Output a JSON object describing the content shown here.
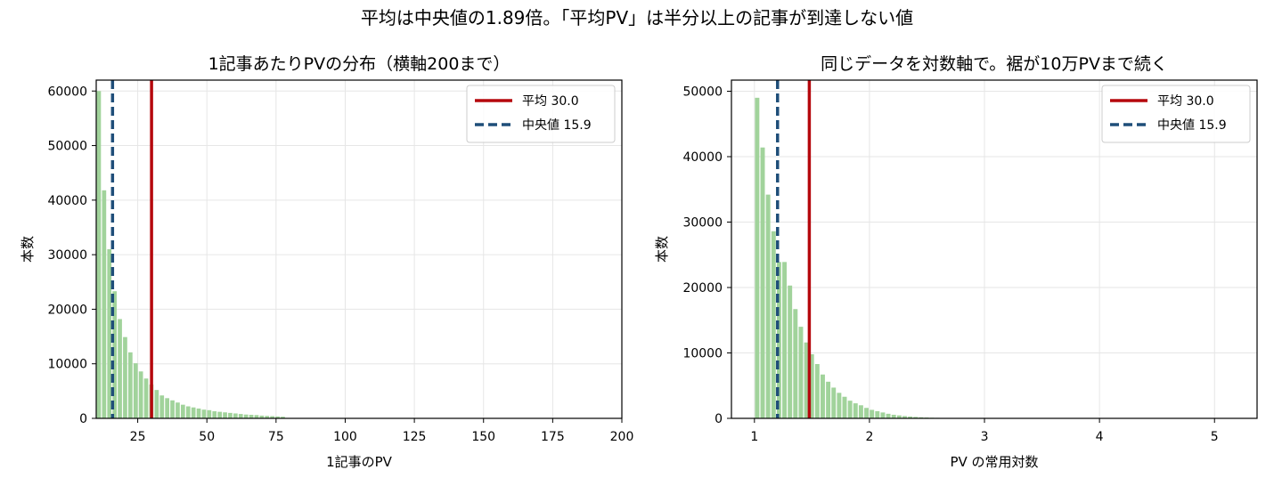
{
  "suptitle": "平均は中央値の1.89倍。「平均PV」は半分以上の記事が到達しない値",
  "colors": {
    "bars": "#a1d39b",
    "mean": "#b5080d",
    "median": "#1f4e79",
    "grid": "#e6e6e6"
  },
  "chart_data": [
    {
      "type": "bar",
      "title": "1記事あたりPVの分布（横軸200まで）",
      "xlabel": "1記事のPV",
      "ylabel": "本数",
      "xlim": [
        10,
        200
      ],
      "ylim": [
        0,
        62000
      ],
      "xticks": [
        25,
        50,
        75,
        100,
        125,
        150,
        175,
        200
      ],
      "yticks": [
        0,
        10000,
        20000,
        30000,
        40000,
        50000,
        60000
      ],
      "grid": true,
      "legend": {
        "position": "top-right",
        "entries": [
          {
            "label": "平均 30.0",
            "style": "solid"
          },
          {
            "label": "中央値 15.9",
            "style": "dashed"
          }
        ]
      },
      "mean": 30.0,
      "median": 15.9,
      "bin_width": 1.9,
      "x": [
        10.0,
        11.9,
        13.8,
        15.7,
        17.6,
        19.5,
        21.4,
        23.3,
        25.2,
        27.1,
        29.0,
        30.9,
        32.8,
        34.7,
        36.6,
        38.5,
        40.4,
        42.3,
        44.2,
        46.1,
        48.0,
        49.9,
        51.8,
        53.7,
        55.6,
        57.5,
        59.4,
        61.3,
        63.2,
        65.1,
        67.0,
        68.9,
        70.8,
        72.7,
        74.6,
        76.5
      ],
      "values": [
        60000,
        41800,
        31000,
        23300,
        18200,
        14900,
        12100,
        10100,
        8600,
        7300,
        6200,
        5200,
        4200,
        3700,
        3300,
        2900,
        2500,
        2200,
        2000,
        1800,
        1600,
        1500,
        1300,
        1200,
        1100,
        1000,
        900,
        800,
        700,
        650,
        600,
        500,
        450,
        400,
        350,
        300
      ]
    },
    {
      "type": "bar",
      "title": "同じデータを対数軸で。裾が10万PVまで続く",
      "xlabel": "PV の常用対数",
      "ylabel": "本数",
      "xlim": [
        0.8,
        5.37
      ],
      "ylim": [
        0,
        51700
      ],
      "xticks": [
        1,
        2,
        3,
        4,
        5
      ],
      "yticks": [
        0,
        10000,
        20000,
        30000,
        40000,
        50000
      ],
      "grid": true,
      "legend": {
        "position": "top-right",
        "entries": [
          {
            "label": "平均 30.0",
            "style": "solid"
          },
          {
            "label": "中央値 15.9",
            "style": "dashed"
          }
        ]
      },
      "mean": 1.477,
      "median": 1.201,
      "bin_width": 0.0475,
      "x": [
        1.0,
        1.0475,
        1.095,
        1.1425,
        1.19,
        1.2375,
        1.285,
        1.3325,
        1.38,
        1.4275,
        1.475,
        1.5225,
        1.57,
        1.6175,
        1.665,
        1.7125,
        1.76,
        1.8075,
        1.855,
        1.9025,
        1.95,
        1.9975,
        2.045,
        2.0925,
        2.14,
        2.1875,
        2.235,
        2.2825,
        2.33,
        2.3775,
        2.425,
        2.4725,
        2.52,
        2.5675,
        2.615,
        2.6625,
        2.71,
        2.7575,
        2.805
      ],
      "values": [
        49000,
        41400,
        34200,
        28600,
        23900,
        23900,
        20300,
        16700,
        14000,
        11600,
        9800,
        8300,
        6700,
        5600,
        4700,
        3900,
        3300,
        2700,
        2300,
        2000,
        1600,
        1300,
        1100,
        900,
        700,
        550,
        450,
        350,
        280,
        220,
        170,
        130,
        100,
        80,
        60,
        45,
        35,
        25,
        15
      ]
    }
  ]
}
